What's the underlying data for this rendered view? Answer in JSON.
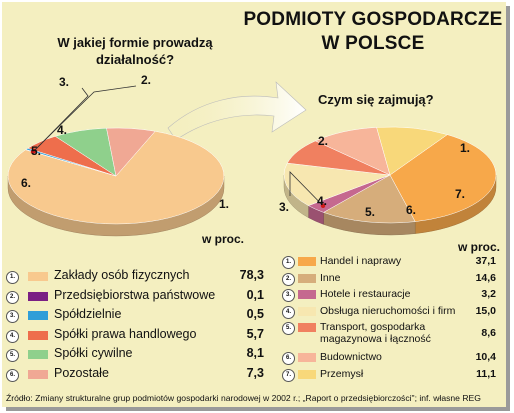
{
  "title_lines": [
    "PODMIOTY GOSPODARCZE",
    "W POLSCE"
  ],
  "source": "Źródło: Zmiany strukturalne grup podmiotów gospodarki narodowej w 2002 r.; „Raport o przedsiębiorczości\"; inf. własne  REG",
  "chart_data": [
    {
      "type": "pie",
      "title": "W jakiej formie prowadzą działalność?",
      "unit": "w proc.",
      "series": [
        {
          "label_no": "1.",
          "category": "Zakłady osób fizycznych",
          "value": 78.3,
          "display": "78,3",
          "color": "#f8c98e"
        },
        {
          "label_no": "2.",
          "category": "Przedsiębiorstwa państwowe",
          "value": 0.1,
          "display": "0,1",
          "color": "#7a1f84"
        },
        {
          "label_no": "3.",
          "category": "Spółdzielnie",
          "value": 0.5,
          "display": "0,5",
          "color": "#2f9ed8"
        },
        {
          "label_no": "4.",
          "category": "Spółki prawa handlowego",
          "value": 5.7,
          "display": "5,7",
          "color": "#ee6e4c"
        },
        {
          "label_no": "5.",
          "category": "Spółki cywilne",
          "value": 8.1,
          "display": "8,1",
          "color": "#8fd08c"
        },
        {
          "label_no": "6.",
          "category": "Pozostałe",
          "value": 7.3,
          "display": "7,3",
          "color": "#f0a894"
        }
      ]
    },
    {
      "type": "pie",
      "title": "Czym się zajmują?",
      "unit": "w proc.",
      "series": [
        {
          "label_no": "1.",
          "category": "Handel i naprawy",
          "value": 37.1,
          "display": "37,1",
          "color": "#f7a84a"
        },
        {
          "label_no": "2.",
          "category": "Inne",
          "value": 14.6,
          "display": "14,6",
          "color": "#d6ad7b"
        },
        {
          "label_no": "3.",
          "category": "Hotele i restauracje",
          "value": 3.2,
          "display": "3,2",
          "color": "#c5688f"
        },
        {
          "label_no": "4.",
          "category": "Obsługa nieruchomości i firm",
          "value": 15.0,
          "display": "15,0",
          "color": "#f7e7b0"
        },
        {
          "label_no": "5.",
          "category": "Transport, gospodarka magazynowa i łączność",
          "value": 8.6,
          "display": "8,6",
          "color": "#f08060",
          "lines": [
            "Transport, gospodarka",
            "magazynowa i łączność"
          ]
        },
        {
          "label_no": "6.",
          "category": "Budownictwo",
          "value": 10.4,
          "display": "10,4",
          "color": "#f7b59a"
        },
        {
          "label_no": "7.",
          "category": "Przemysł",
          "value": 11.1,
          "display": "11,1",
          "color": "#f8d87a"
        }
      ]
    }
  ]
}
